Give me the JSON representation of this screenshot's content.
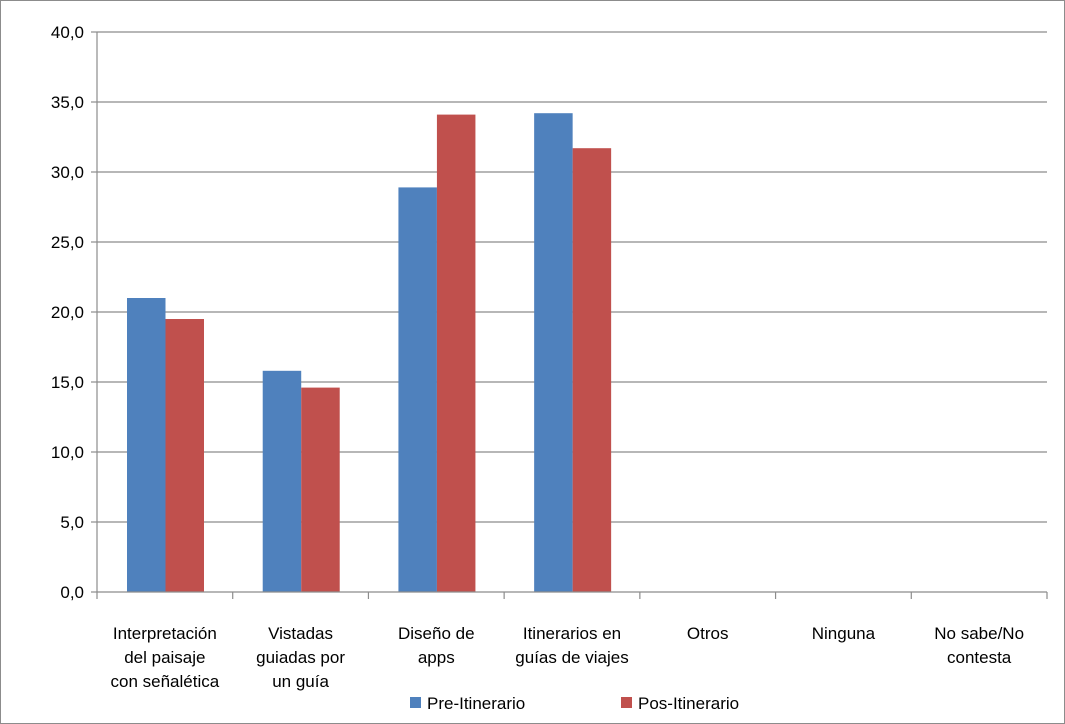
{
  "chart_data": {
    "type": "bar",
    "categories": [
      [
        "Interpretación",
        "del paisaje",
        "con señalética"
      ],
      [
        "Vistadas",
        "guiadas por",
        "un guía"
      ],
      [
        "Diseño de",
        "apps"
      ],
      [
        "Itinerarios en",
        "guías de viajes"
      ],
      [
        "Otros"
      ],
      [
        "Ninguna"
      ],
      [
        "No sabe/No",
        "contesta"
      ]
    ],
    "series": [
      {
        "name": "Pre-Itinerario",
        "color": "#4F81BD",
        "values": [
          21.0,
          15.8,
          28.9,
          34.2,
          0,
          0,
          0
        ]
      },
      {
        "name": "Pos-Itinerario",
        "color": "#C0504D",
        "values": [
          19.5,
          14.6,
          34.1,
          31.7,
          0,
          0,
          0
        ]
      }
    ],
    "ylim": [
      0,
      40
    ],
    "yticks": [
      "0,0",
      "5,0",
      "10,0",
      "15,0",
      "20,0",
      "25,0",
      "30,0",
      "35,0",
      "40,0"
    ],
    "ytick_values": [
      0,
      5,
      10,
      15,
      20,
      25,
      30,
      35,
      40
    ],
    "grid": true,
    "legend": "bottom"
  }
}
